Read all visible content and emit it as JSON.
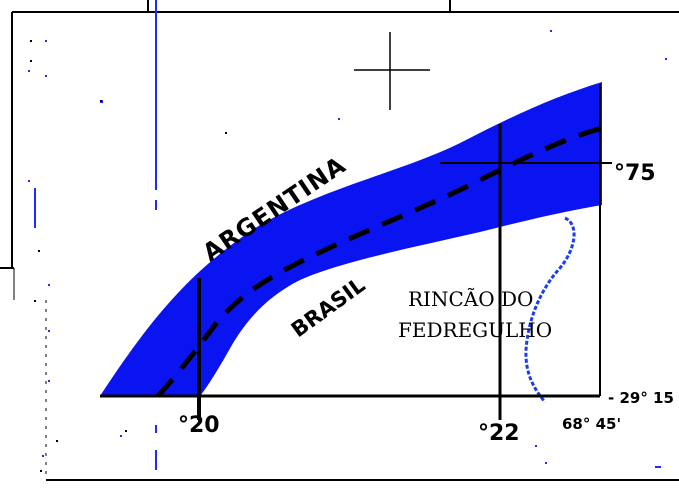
{
  "map": {
    "labels": {
      "argentina": "ARGENTINA",
      "brasil": "BRASIL",
      "rincao_line1": "RINCÃO DO",
      "rincao_line2": "FEDREGULHO",
      "marker_75": "°75",
      "marker_20": "°20",
      "marker_22": "°22",
      "coord_long": "68° 45'",
      "coord_lat": "- 29° 15"
    },
    "colors": {
      "river_band": "#0a14f0",
      "border_line": "#000000",
      "stream": "#1a3df0",
      "background": "#ffffff"
    }
  }
}
